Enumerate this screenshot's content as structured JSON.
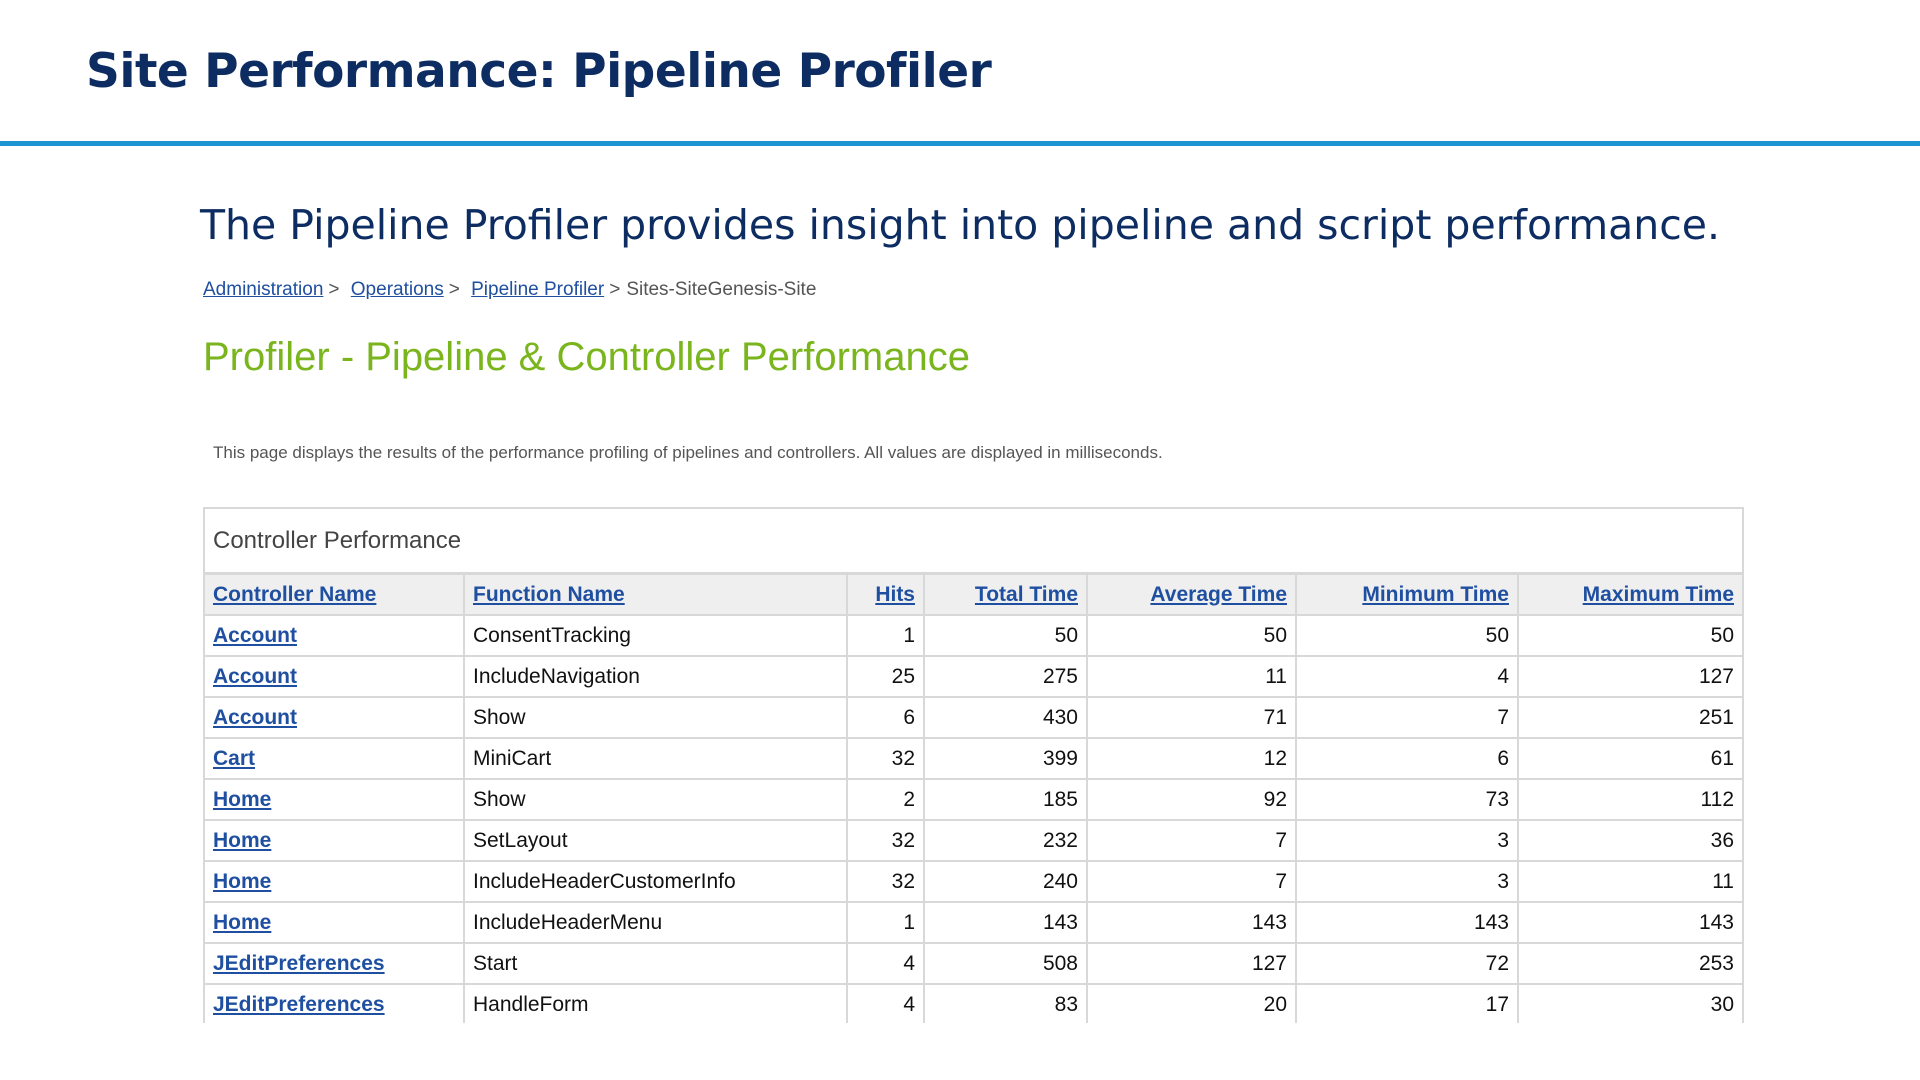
{
  "slide": {
    "title": "Site Performance: Pipeline Profiler",
    "subtitle": "The Pipeline Profiler provides insight into pipeline and script performance.",
    "accent_color": "#1c95d2",
    "title_color": "#0d2d62"
  },
  "breadcrumb": {
    "items": [
      "Administration",
      "Operations",
      "Pipeline Profiler"
    ],
    "separator": ">",
    "current": "Sites-SiteGenesis-Site"
  },
  "profiler": {
    "title": "Profiler - Pipeline & Controller Performance",
    "title_color": "#7ab51d",
    "description": "This page displays the results of the performance profiling of pipelines and controllers. All values are displayed in milliseconds."
  },
  "controller_performance": {
    "caption": "Controller Performance",
    "columns": [
      "Controller Name",
      "Function Name",
      "Hits",
      "Total Time",
      "Average Time",
      "Minimum Time",
      "Maximum Time"
    ],
    "rows": [
      [
        "Account",
        "ConsentTracking",
        "1",
        "50",
        "50",
        "50",
        "50"
      ],
      [
        "Account",
        "IncludeNavigation",
        "25",
        "275",
        "11",
        "4",
        "127"
      ],
      [
        "Account",
        "Show",
        "6",
        "430",
        "71",
        "7",
        "251"
      ],
      [
        "Cart",
        "MiniCart",
        "32",
        "399",
        "12",
        "6",
        "61"
      ],
      [
        "Home",
        "Show",
        "2",
        "185",
        "92",
        "73",
        "112"
      ],
      [
        "Home",
        "SetLayout",
        "32",
        "232",
        "7",
        "3",
        "36"
      ],
      [
        "Home",
        "IncludeHeaderCustomerInfo",
        "32",
        "240",
        "7",
        "3",
        "11"
      ],
      [
        "Home",
        "IncludeHeaderMenu",
        "1",
        "143",
        "143",
        "143",
        "143"
      ],
      [
        "JEditPreferences",
        "Start",
        "4",
        "508",
        "127",
        "72",
        "253"
      ],
      [
        "JEditPreferences",
        "HandleForm",
        "4",
        "83",
        "20",
        "17",
        "30"
      ]
    ]
  }
}
